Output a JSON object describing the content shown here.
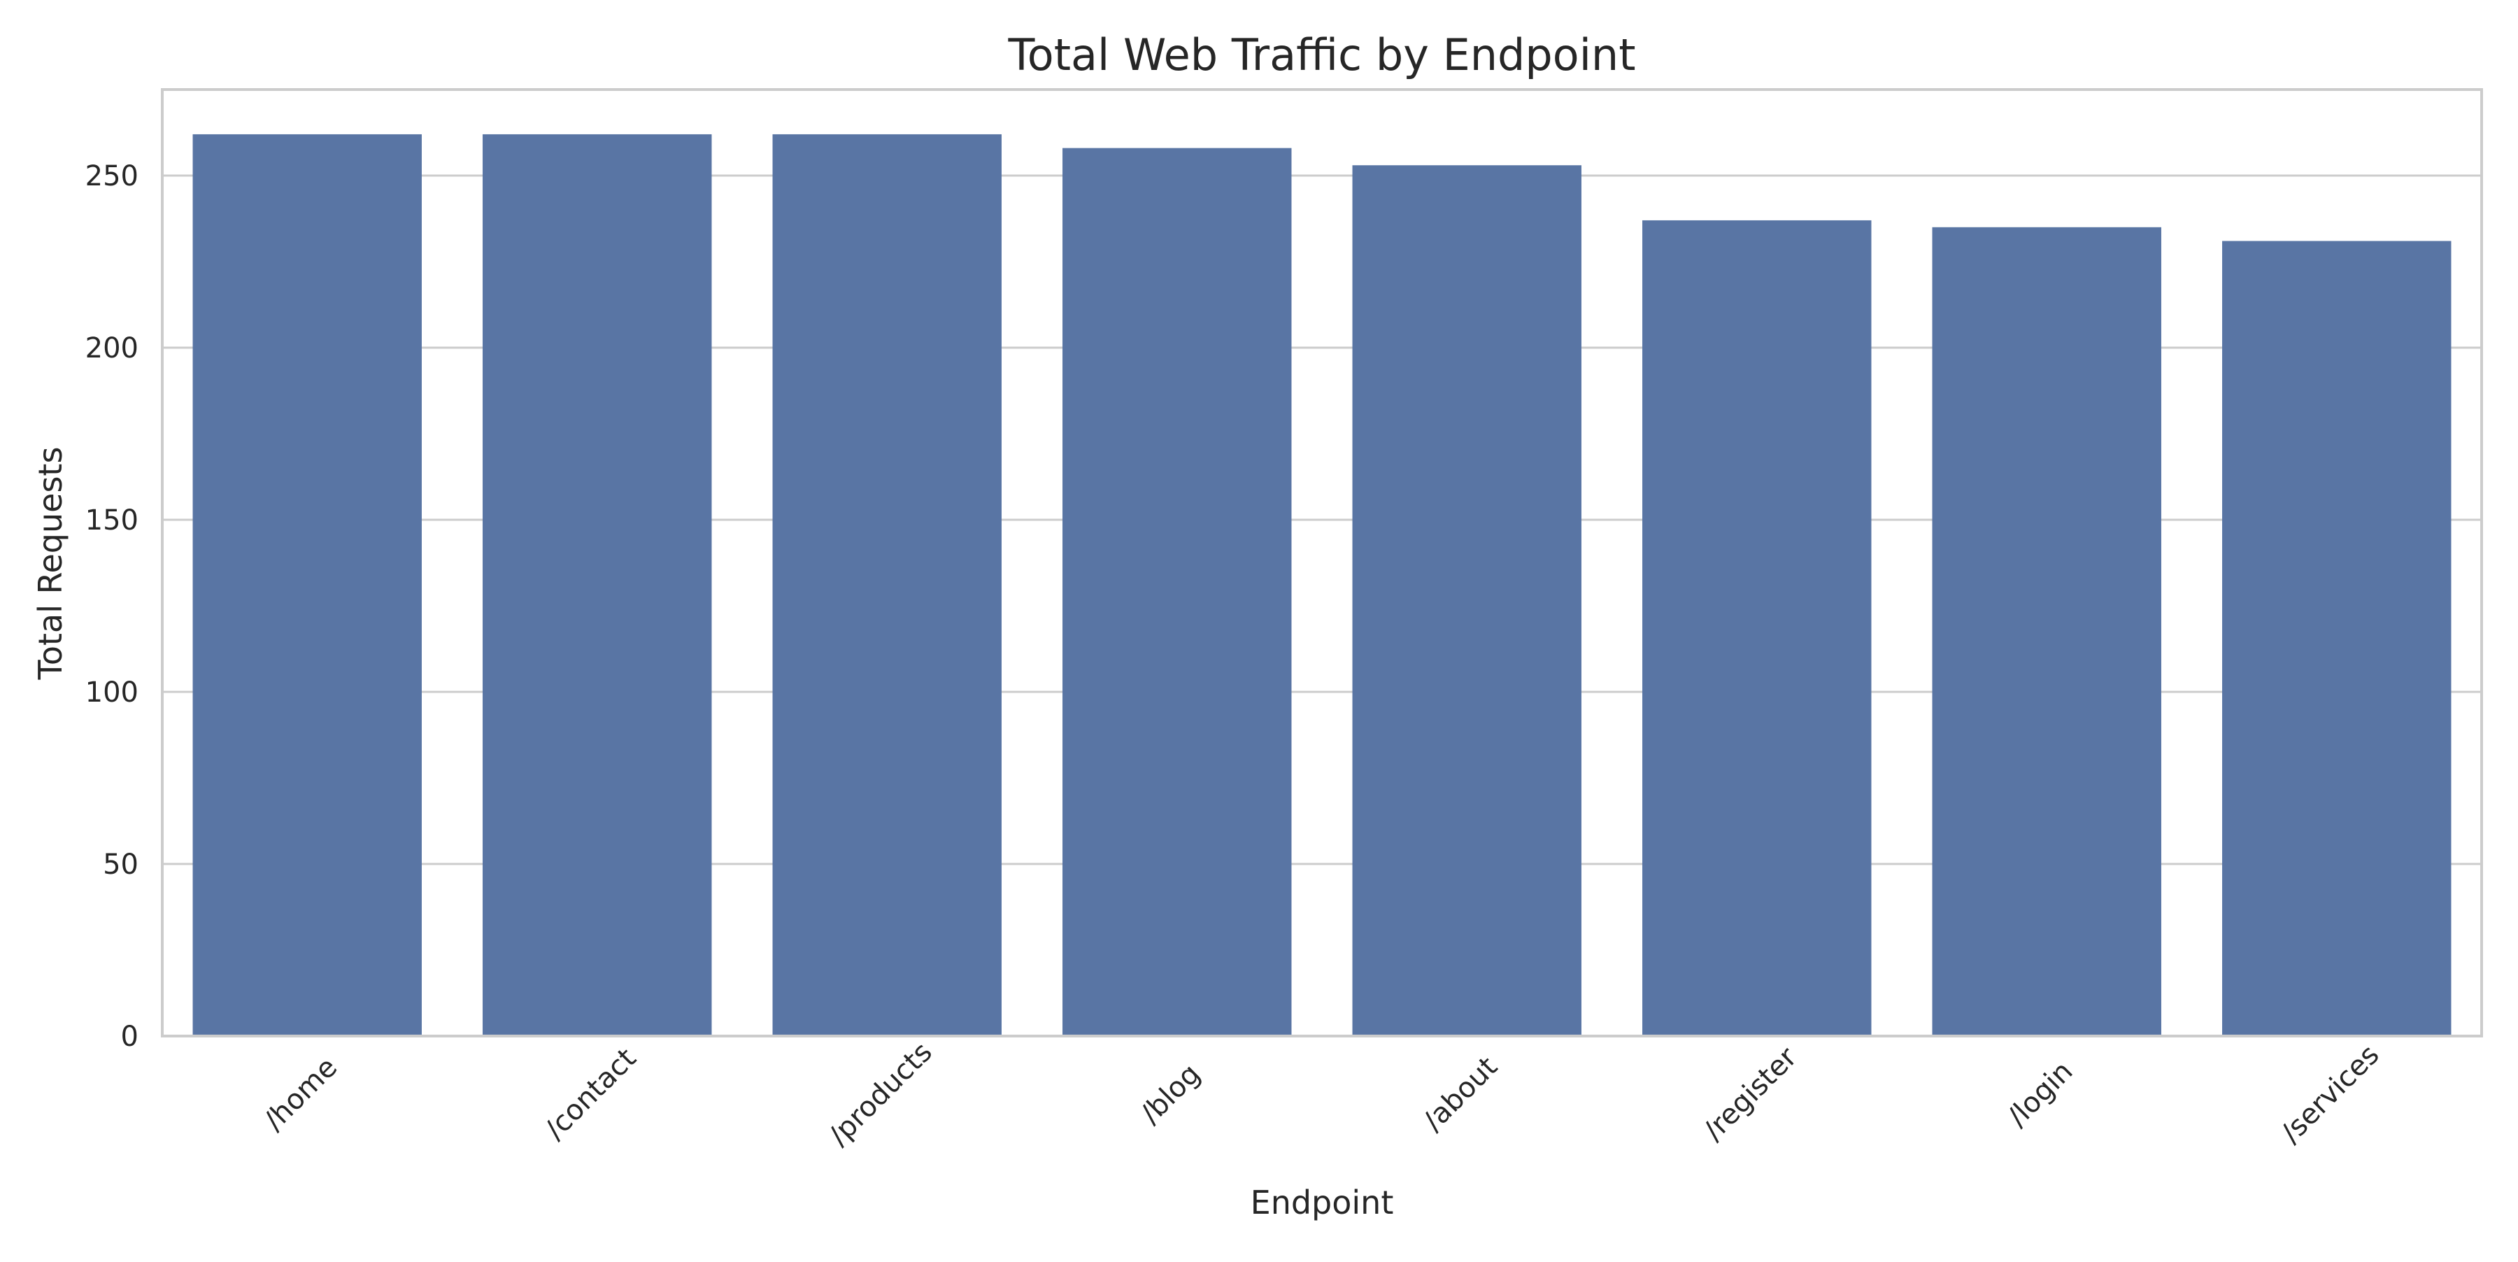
{
  "chart_data": {
    "type": "bar",
    "title": "Total Web Traffic by Endpoint",
    "xlabel": "Endpoint",
    "ylabel": "Total Requests",
    "categories": [
      "/home",
      "/contact",
      "/products",
      "/blog",
      "/about",
      "/register",
      "/login",
      "/services"
    ],
    "values": [
      262,
      262,
      262,
      258,
      253,
      237,
      235,
      231
    ],
    "ylim": [
      0,
      275
    ],
    "yticks": [
      0,
      50,
      100,
      150,
      200,
      250
    ],
    "grid": "horizontal",
    "bar_color": "#5975a4",
    "grid_color": "#cccccc",
    "frame_color": "#cccccc",
    "tick_rotation_deg": -45
  }
}
